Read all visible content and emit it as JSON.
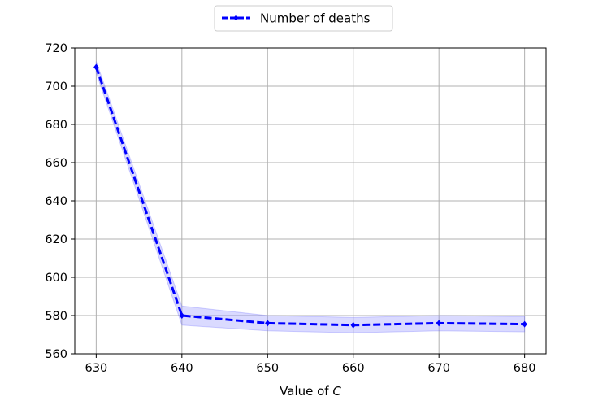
{
  "chart_data": {
    "type": "line",
    "title": "",
    "xlabel_prefix": "Value of ",
    "xlabel_var": "C",
    "ylabel": "",
    "xlim": [
      627.5,
      682.5
    ],
    "ylim": [
      560,
      720
    ],
    "x_ticks": [
      630,
      640,
      650,
      660,
      670,
      680
    ],
    "y_ticks": [
      560,
      580,
      600,
      620,
      640,
      660,
      680,
      700,
      720
    ],
    "grid": true,
    "legend_position": "top-center",
    "series": [
      {
        "name": "Number of deaths",
        "color": "#0000ff",
        "band_color": "#6a6aff",
        "line_style": "dashed",
        "marker": "diamond",
        "x": [
          630,
          640,
          650,
          660,
          670,
          680
        ],
        "y": [
          710,
          580,
          576,
          575,
          576,
          575.5
        ],
        "lower": [
          707,
          575,
          572,
          571,
          572,
          571.5
        ],
        "upper": [
          713,
          585,
          580,
          579,
          580,
          579.5
        ]
      }
    ]
  }
}
